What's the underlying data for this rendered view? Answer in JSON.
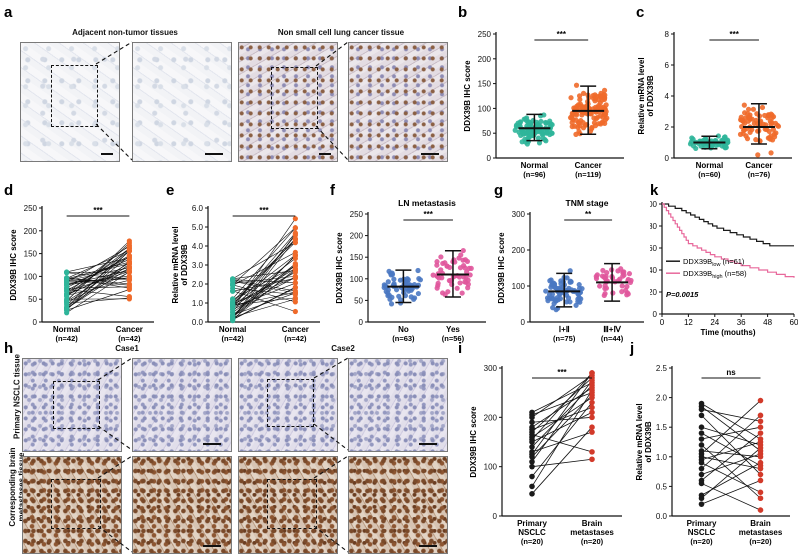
{
  "panels": {
    "a": {
      "label": "a",
      "captions": [
        "Adjacent non-tumor tissues",
        "Non small cell lung cancer tissue"
      ]
    },
    "b": {
      "label": "b"
    },
    "c": {
      "label": "c"
    },
    "d": {
      "label": "d"
    },
    "e": {
      "label": "e"
    },
    "f": {
      "label": "f"
    },
    "g": {
      "label": "g"
    },
    "k": {
      "label": "k"
    },
    "h": {
      "label": "h",
      "cases": [
        "Case1",
        "Case2"
      ],
      "row_labels": [
        "Primary NSCLC tissue",
        "Corresponding brain metastases tissue"
      ]
    },
    "i": {
      "label": "i"
    },
    "j": {
      "label": "j"
    }
  },
  "colors": {
    "teal": "#2fb59a",
    "orange": "#ef6a2a",
    "blue": "#4a78c2",
    "pink": "#e0569c",
    "black": "#1a1a1a",
    "red": "#d23a2a",
    "surv_pink": "#e8689b"
  },
  "chart_data": [
    {
      "id": "b",
      "type": "scatter",
      "subtype": "dot-plot",
      "ylabel": "DDX39B IHC score",
      "ylim": [
        0,
        250
      ],
      "yticks": [
        0,
        50,
        100,
        150,
        200,
        250
      ],
      "categories": [
        {
          "name": "Normal",
          "n": "(n=96)",
          "color": "#2fb59a",
          "mean": 60,
          "sd_low": 35,
          "sd_high": 88,
          "range": [
            0,
            110
          ]
        },
        {
          "name": "Cancer",
          "n": "(n=119)",
          "color": "#ef6a2a",
          "mean": 95,
          "sd_low": 48,
          "sd_high": 145,
          "range": [
            10,
            245
          ]
        }
      ],
      "significance": "***"
    },
    {
      "id": "c",
      "type": "scatter",
      "subtype": "dot-plot",
      "ylabel": "Relative mRNA level of DDX39B",
      "ylim": [
        0,
        8
      ],
      "yticks": [
        0,
        2,
        4,
        6,
        8
      ],
      "categories": [
        {
          "name": "Normal",
          "n": "(n=60)",
          "color": "#2fb59a",
          "mean": 1.0,
          "sd_low": 0.6,
          "sd_high": 1.4,
          "range": [
            0.1,
            2.9
          ]
        },
        {
          "name": "Cancer",
          "n": "(n=76)",
          "color": "#ef6a2a",
          "mean": 2.0,
          "sd_low": 0.9,
          "sd_high": 3.5,
          "range": [
            0.2,
            6.0
          ]
        }
      ],
      "significance": "***"
    },
    {
      "id": "d",
      "type": "line",
      "subtype": "paired",
      "ylabel": "DDX39B IHC score",
      "ylim": [
        0,
        250
      ],
      "yticks": [
        0,
        50,
        100,
        150,
        200,
        250
      ],
      "categories": [
        {
          "name": "Normal",
          "n": "(n=42)",
          "color": "#2fb59a",
          "range": [
            10,
            110
          ]
        },
        {
          "name": "Cancer",
          "n": "(n=42)",
          "color": "#ef6a2a",
          "range": [
            35,
            210
          ]
        }
      ],
      "pairs": 42,
      "significance": "***"
    },
    {
      "id": "e",
      "type": "line",
      "subtype": "paired",
      "ylabel": "Relative mRNA level of DDX39B",
      "ylim": [
        0,
        6
      ],
      "yticks": [
        0.0,
        1.0,
        2.0,
        3.0,
        4.0,
        5.0,
        6.0
      ],
      "tick_format": 1,
      "categories": [
        {
          "name": "Normal",
          "n": "(n=42)",
          "color": "#2fb59a",
          "range": [
            0.05,
            2.3
          ]
        },
        {
          "name": "Cancer",
          "n": "(n=42)",
          "color": "#ef6a2a",
          "range": [
            0.2,
            5.6
          ]
        }
      ],
      "pairs": 42,
      "significance": "***"
    },
    {
      "id": "f",
      "type": "scatter",
      "subtype": "dot-plot",
      "title": "LN metastasis",
      "ylabel": "DDX39B IHC score",
      "ylim": [
        0,
        250
      ],
      "yticks": [
        0,
        50,
        100,
        150,
        200,
        250
      ],
      "categories": [
        {
          "name": "No",
          "n": "(n=63)",
          "color": "#4a78c2",
          "mean": 82,
          "sd_low": 45,
          "sd_high": 120,
          "range": [
            0,
            150
          ]
        },
        {
          "name": "Yes",
          "n": "(n=56)",
          "color": "#e0569c",
          "mean": 110,
          "sd_low": 58,
          "sd_high": 165,
          "range": [
            10,
            215
          ]
        }
      ],
      "significance": "***"
    },
    {
      "id": "g",
      "type": "scatter",
      "subtype": "dot-plot",
      "title": "TNM stage",
      "ylabel": "DDX39B IHC score",
      "ylim": [
        0,
        300
      ],
      "yticks": [
        0,
        100,
        200,
        300
      ],
      "categories": [
        {
          "name": "Ⅰ+Ⅱ",
          "n": "(n=75)",
          "color": "#4a78c2",
          "mean": 85,
          "sd_low": 42,
          "sd_high": 135,
          "range": [
            0,
            215
          ]
        },
        {
          "name": "Ⅲ+Ⅳ",
          "n": "(n=44)",
          "color": "#e0569c",
          "mean": 110,
          "sd_low": 58,
          "sd_high": 162,
          "range": [
            10,
            230
          ]
        }
      ],
      "significance": "**"
    },
    {
      "id": "k",
      "type": "line",
      "subtype": "kaplan-meier",
      "ylabel": "Overall survival probability",
      "xlabel": "Time (mouths)",
      "xlim": [
        0,
        60
      ],
      "ylim": [
        0,
        100
      ],
      "xticks": [
        0,
        12,
        24,
        36,
        48,
        60
      ],
      "yticks": [
        0,
        20,
        40,
        60,
        80,
        100
      ],
      "series": [
        {
          "name": "DDX39Blow (n=61)",
          "base": "DDX39B",
          "sub": "low",
          "n": "(n=61)",
          "color": "#1a1a1a",
          "x": [
            0,
            3,
            6,
            9,
            11,
            13,
            15,
            17,
            19,
            21,
            23,
            25,
            28,
            31,
            34,
            37,
            40,
            43,
            46,
            49,
            52,
            60
          ],
          "y": [
            100,
            98,
            96,
            94,
            92,
            90,
            88,
            86,
            84,
            82,
            80,
            78,
            76,
            74,
            72,
            70,
            68,
            66,
            64,
            62,
            62,
            62
          ]
        },
        {
          "name": "DDX39Bhigh (n=58)",
          "base": "DDX39B",
          "sub": "high",
          "n": "(n=58)",
          "color": "#e8689b",
          "x": [
            0,
            1,
            2,
            3,
            4,
            5,
            6,
            7,
            8,
            9,
            10,
            11,
            12,
            14,
            16,
            18,
            20,
            22,
            24,
            27,
            30,
            33,
            36,
            40,
            44,
            48,
            52,
            56,
            60
          ],
          "y": [
            100,
            97,
            94,
            91,
            88,
            85,
            82,
            79,
            76,
            73,
            70,
            67,
            64,
            62,
            60,
            58,
            56,
            54,
            52,
            50,
            48,
            46,
            44,
            42,
            40,
            38,
            36,
            34,
            33
          ]
        }
      ],
      "pvalue": "P=0.0015"
    },
    {
      "id": "i",
      "type": "line",
      "subtype": "paired",
      "ylabel": "DDX39B IHC score",
      "ylim": [
        0,
        300
      ],
      "yticks": [
        0,
        100,
        200,
        300
      ],
      "categories": [
        {
          "name": "Primary NSCLC",
          "n": "(n=20)",
          "color": "#1a1a1a"
        },
        {
          "name": "Brain metastases",
          "n": "(n=20)",
          "color": "#d23a2a"
        }
      ],
      "left": [
        45,
        60,
        80,
        100,
        110,
        120,
        125,
        130,
        140,
        150,
        155,
        160,
        165,
        170,
        175,
        180,
        190,
        200,
        205,
        210
      ],
      "right": [
        115,
        130,
        170,
        180,
        200,
        210,
        220,
        230,
        240,
        245,
        250,
        255,
        260,
        265,
        270,
        275,
        280,
        285,
        290,
        290
      ],
      "significance": "***"
    },
    {
      "id": "j",
      "type": "line",
      "subtype": "paired",
      "ylabel": "Relative mRNA level of DDX39B",
      "ylim": [
        0,
        2.5
      ],
      "yticks": [
        0.0,
        0.5,
        1.0,
        1.5,
        2.0,
        2.5
      ],
      "tick_format": 1,
      "categories": [
        {
          "name": "Primary NSCLC",
          "n": "(n=20)",
          "color": "#1a1a1a"
        },
        {
          "name": "Brain metastases",
          "n": "(n=20)",
          "color": "#d23a2a"
        }
      ],
      "left": [
        0.2,
        0.3,
        0.35,
        0.55,
        0.6,
        0.7,
        0.8,
        0.9,
        0.95,
        1.0,
        1.05,
        1.1,
        1.2,
        1.3,
        1.4,
        1.5,
        1.7,
        1.8,
        1.85,
        1.9
      ],
      "right": [
        0.1,
        0.3,
        0.4,
        0.6,
        0.7,
        0.8,
        0.85,
        0.9,
        1.0,
        1.05,
        1.1,
        1.15,
        1.2,
        1.25,
        1.3,
        1.4,
        1.5,
        1.6,
        1.7,
        1.95
      ],
      "significance": "ns"
    }
  ]
}
